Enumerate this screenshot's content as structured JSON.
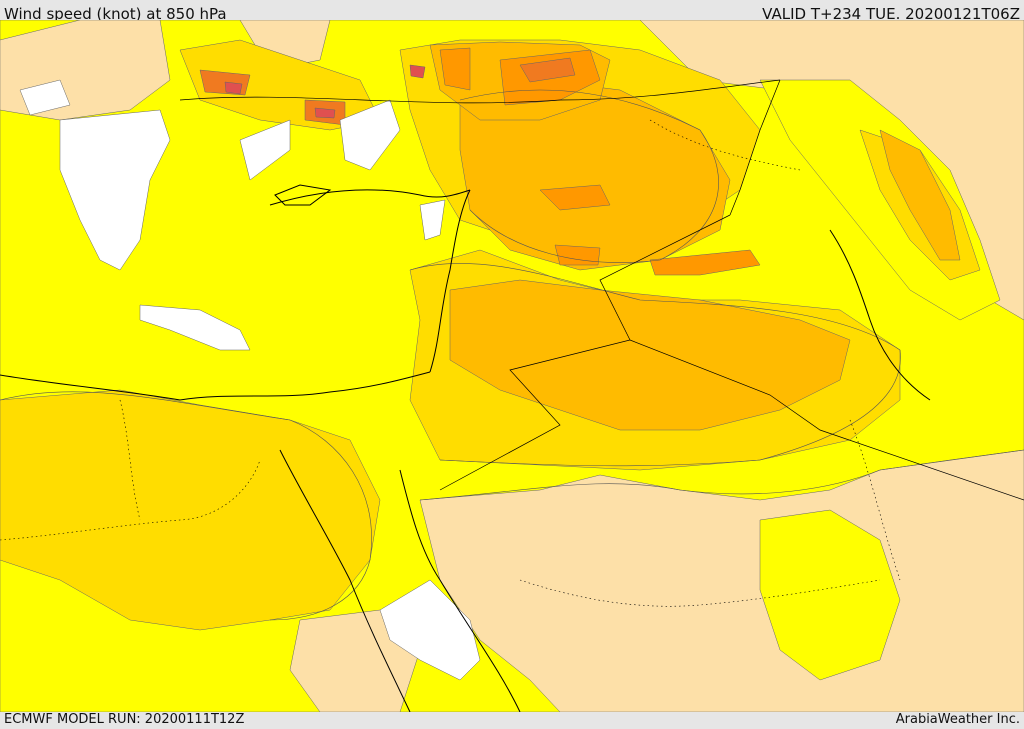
{
  "header": {
    "title": "Wind speed (knot) at 850 hPa",
    "valid_time": "VALID T+234 TUE. 20200121T06Z"
  },
  "footer": {
    "model_run": "ECMWF MODEL RUN: 20200111T12Z",
    "credit": "ArabiaWeather Inc."
  },
  "map": {
    "colors": {
      "calm": "#ffffff",
      "low": "#fde0a8",
      "mid": "#ffff00",
      "mid_high": "#ffdd00",
      "high": "#ffbb00",
      "very_high": "#ff9800",
      "extreme": "#f07a20",
      "peak": "#e05050"
    }
  }
}
